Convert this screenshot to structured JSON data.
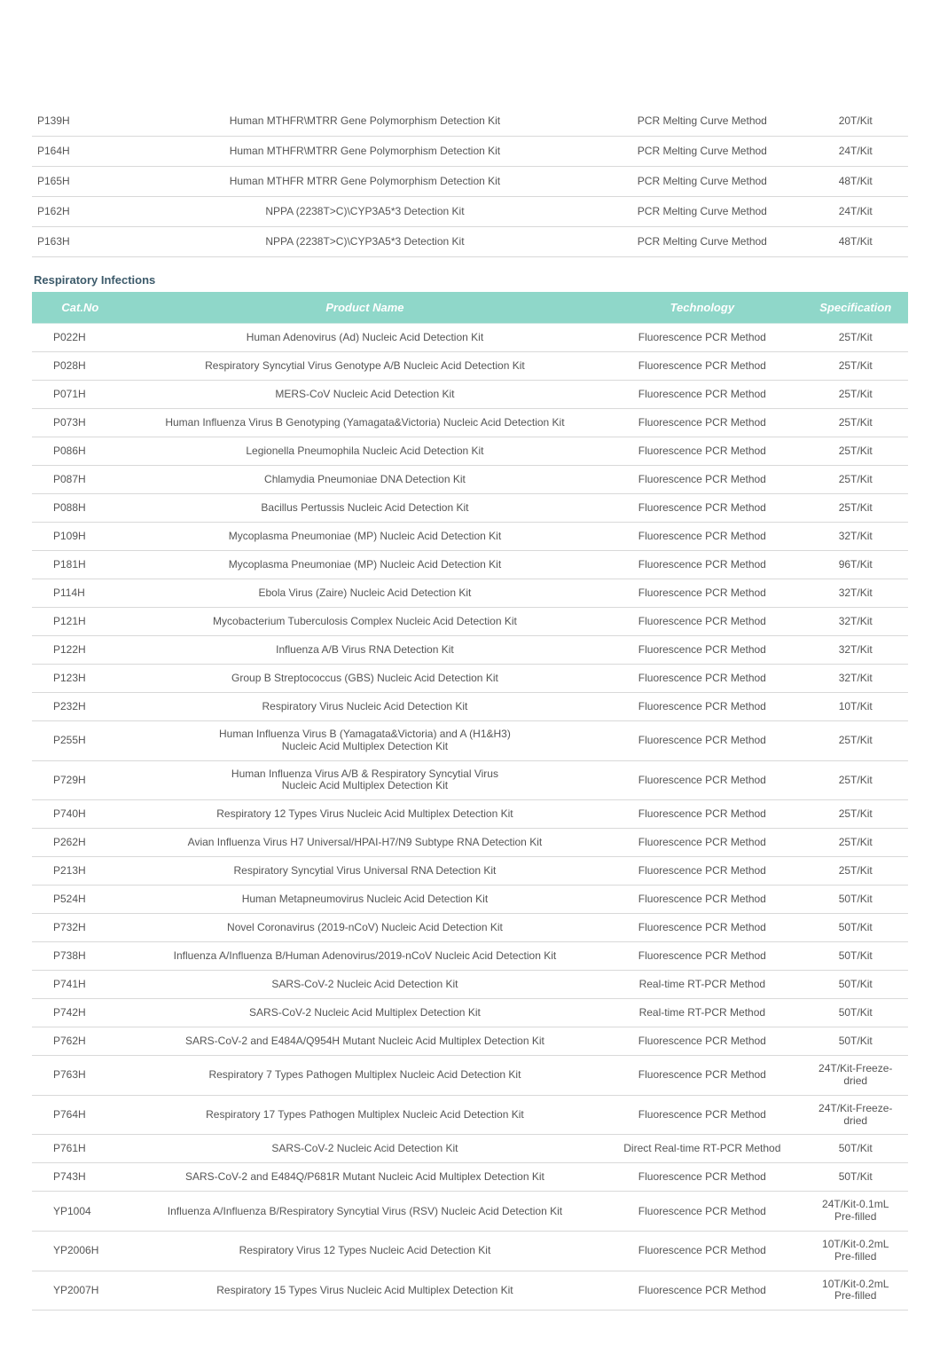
{
  "colors": {
    "header_bg": "#8fd7c9",
    "header_text": "#ffffff",
    "row_border": "#d9d9d9",
    "body_text": "#555555",
    "section_title": "#3c5a6a",
    "page_bg": "#ffffff"
  },
  "columns": {
    "cat": "Cat.No",
    "name": "Product Name",
    "tech": "Technology",
    "spec": "Specification"
  },
  "top_table": {
    "rows": [
      {
        "cat": "P139H",
        "name": "Human MTHFR\\MTRR Gene Polymorphism Detection Kit",
        "tech": "PCR Melting Curve Method",
        "spec": "20T/Kit"
      },
      {
        "cat": "P164H",
        "name": "Human MTHFR\\MTRR Gene Polymorphism Detection Kit",
        "tech": "PCR Melting Curve Method",
        "spec": "24T/Kit"
      },
      {
        "cat": "P165H",
        "name": "Human MTHFR MTRR Gene Polymorphism Detection Kit",
        "tech": "PCR Melting Curve Method",
        "spec": "48T/Kit"
      },
      {
        "cat": "P162H",
        "name": "NPPA (2238T>C)\\CYP3A5*3 Detection Kit",
        "tech": "PCR Melting Curve Method",
        "spec": "24T/Kit"
      },
      {
        "cat": "P163H",
        "name": "NPPA (2238T>C)\\CYP3A5*3 Detection Kit",
        "tech": "PCR Melting Curve Method",
        "spec": "48T/Kit"
      }
    ]
  },
  "section2": {
    "title": "Respiratory Infections",
    "rows": [
      {
        "cat": "P022H",
        "name": "Human Adenovirus (Ad) Nucleic Acid Detection Kit",
        "tech": "Fluorescence PCR Method",
        "spec": "25T/Kit"
      },
      {
        "cat": "P028H",
        "name": "Respiratory Syncytial Virus Genotype A/B Nucleic Acid Detection Kit",
        "tech": "Fluorescence PCR Method",
        "spec": "25T/Kit"
      },
      {
        "cat": "P071H",
        "name": "MERS-CoV Nucleic Acid Detection Kit",
        "tech": "Fluorescence PCR Method",
        "spec": "25T/Kit"
      },
      {
        "cat": "P073H",
        "name": "Human Influenza Virus B Genotyping (Yamagata&Victoria) Nucleic Acid Detection Kit",
        "tech": "Fluorescence PCR Method",
        "spec": "25T/Kit"
      },
      {
        "cat": "P086H",
        "name": "Legionella Pneumophila Nucleic Acid Detection Kit",
        "tech": "Fluorescence PCR Method",
        "spec": "25T/Kit"
      },
      {
        "cat": "P087H",
        "name": "Chlamydia Pneumoniae DNA Detection Kit",
        "tech": "Fluorescence PCR Method",
        "spec": "25T/Kit"
      },
      {
        "cat": "P088H",
        "name": "Bacillus Pertussis Nucleic Acid Detection Kit",
        "tech": "Fluorescence PCR Method",
        "spec": "25T/Kit"
      },
      {
        "cat": "P109H",
        "name": "Mycoplasma Pneumoniae (MP) Nucleic Acid Detection Kit",
        "tech": "Fluorescence PCR Method",
        "spec": "32T/Kit"
      },
      {
        "cat": "P181H",
        "name": "Mycoplasma Pneumoniae (MP) Nucleic Acid Detection Kit",
        "tech": "Fluorescence PCR Method",
        "spec": "96T/Kit"
      },
      {
        "cat": "P114H",
        "name": "Ebola Virus (Zaire) Nucleic Acid Detection Kit",
        "tech": "Fluorescence PCR Method",
        "spec": "32T/Kit"
      },
      {
        "cat": "P121H",
        "name": "Mycobacterium Tuberculosis Complex Nucleic Acid Detection Kit",
        "tech": "Fluorescence PCR Method",
        "spec": "32T/Kit"
      },
      {
        "cat": "P122H",
        "name": "Influenza A/B Virus RNA Detection Kit",
        "tech": "Fluorescence PCR Method",
        "spec": "32T/Kit"
      },
      {
        "cat": "P123H",
        "name": "Group B Streptococcus (GBS) Nucleic Acid Detection Kit",
        "tech": "Fluorescence PCR Method",
        "spec": "32T/Kit"
      },
      {
        "cat": "P232H",
        "name": "Respiratory Virus Nucleic Acid Detection Kit",
        "tech": "Fluorescence PCR Method",
        "spec": "10T/Kit"
      },
      {
        "cat": "P255H",
        "name": "Human Influenza Virus B (Yamagata&Victoria) and A (H1&H3)\nNucleic Acid Multiplex Detection Kit",
        "tech": "Fluorescence PCR Method",
        "spec": "25T/Kit"
      },
      {
        "cat": "P729H",
        "name": "Human Influenza Virus A/B & Respiratory Syncytial Virus\nNucleic Acid Multiplex Detection Kit",
        "tech": "Fluorescence PCR Method",
        "spec": "25T/Kit"
      },
      {
        "cat": "P740H",
        "name": "Respiratory 12 Types Virus Nucleic Acid Multiplex Detection Kit",
        "tech": "Fluorescence PCR Method",
        "spec": "25T/Kit"
      },
      {
        "cat": "P262H",
        "name": "Avian Influenza Virus H7 Universal/HPAI-H7/N9 Subtype RNA Detection Kit",
        "tech": "Fluorescence PCR Method",
        "spec": "25T/Kit"
      },
      {
        "cat": "P213H",
        "name": "Respiratory Syncytial Virus Universal RNA Detection Kit",
        "tech": "Fluorescence PCR Method",
        "spec": "25T/Kit"
      },
      {
        "cat": "P524H",
        "name": "Human Metapneumovirus Nucleic Acid Detection Kit",
        "tech": "Fluorescence PCR Method",
        "spec": "50T/Kit"
      },
      {
        "cat": "P732H",
        "name": "Novel Coronavirus (2019-nCoV) Nucleic Acid Detection Kit",
        "tech": "Fluorescence PCR Method",
        "spec": "50T/Kit"
      },
      {
        "cat": "P738H",
        "name": "Influenza A/Influenza B/Human Adenovirus/2019-nCoV Nucleic Acid Detection Kit",
        "tech": "Fluorescence PCR Method",
        "spec": "50T/Kit"
      },
      {
        "cat": "P741H",
        "name": "SARS-CoV-2 Nucleic Acid Detection Kit",
        "tech": "Real-time RT-PCR Method",
        "spec": "50T/Kit"
      },
      {
        "cat": "P742H",
        "name": "SARS-CoV-2 Nucleic Acid Multiplex Detection Kit",
        "tech": "Real-time RT-PCR Method",
        "spec": "50T/Kit"
      },
      {
        "cat": "P762H",
        "name": "SARS-CoV-2 and E484A/Q954H Mutant Nucleic Acid Multiplex Detection Kit",
        "tech": "Fluorescence PCR Method",
        "spec": "50T/Kit"
      },
      {
        "cat": "P763H",
        "name": "Respiratory 7 Types Pathogen Multiplex Nucleic Acid Detection Kit",
        "tech": "Fluorescence PCR Method",
        "spec": "24T/Kit-Freeze-\ndried"
      },
      {
        "cat": "P764H",
        "name": "Respiratory 17 Types Pathogen Multiplex Nucleic Acid Detection Kit",
        "tech": "Fluorescence PCR Method",
        "spec": "24T/Kit-Freeze-\ndried"
      },
      {
        "cat": "P761H",
        "name": "SARS-CoV-2 Nucleic Acid Detection Kit",
        "tech": "Direct Real-time RT-PCR Method",
        "spec": "50T/Kit"
      },
      {
        "cat": "P743H",
        "name": "SARS-CoV-2 and E484Q/P681R Mutant Nucleic Acid Multiplex Detection Kit",
        "tech": "Fluorescence PCR Method",
        "spec": "50T/Kit"
      },
      {
        "cat": "YP1004",
        "name": "Influenza A/Influenza B/Respiratory Syncytial Virus (RSV) Nucleic Acid Detection Kit",
        "tech": "Fluorescence PCR Method",
        "spec": "24T/Kit-0.1mL\nPre-filled"
      },
      {
        "cat": "YP2006H",
        "name": "Respiratory Virus 12 Types Nucleic Acid Detection Kit",
        "tech": "Fluorescence PCR Method",
        "spec": "10T/Kit-0.2mL\nPre-filled"
      },
      {
        "cat": "YP2007H",
        "name": "Respiratory 15 Types Virus Nucleic Acid Multiplex Detection Kit",
        "tech": "Fluorescence PCR Method",
        "spec": "10T/Kit-0.2mL\nPre-filled"
      }
    ]
  }
}
